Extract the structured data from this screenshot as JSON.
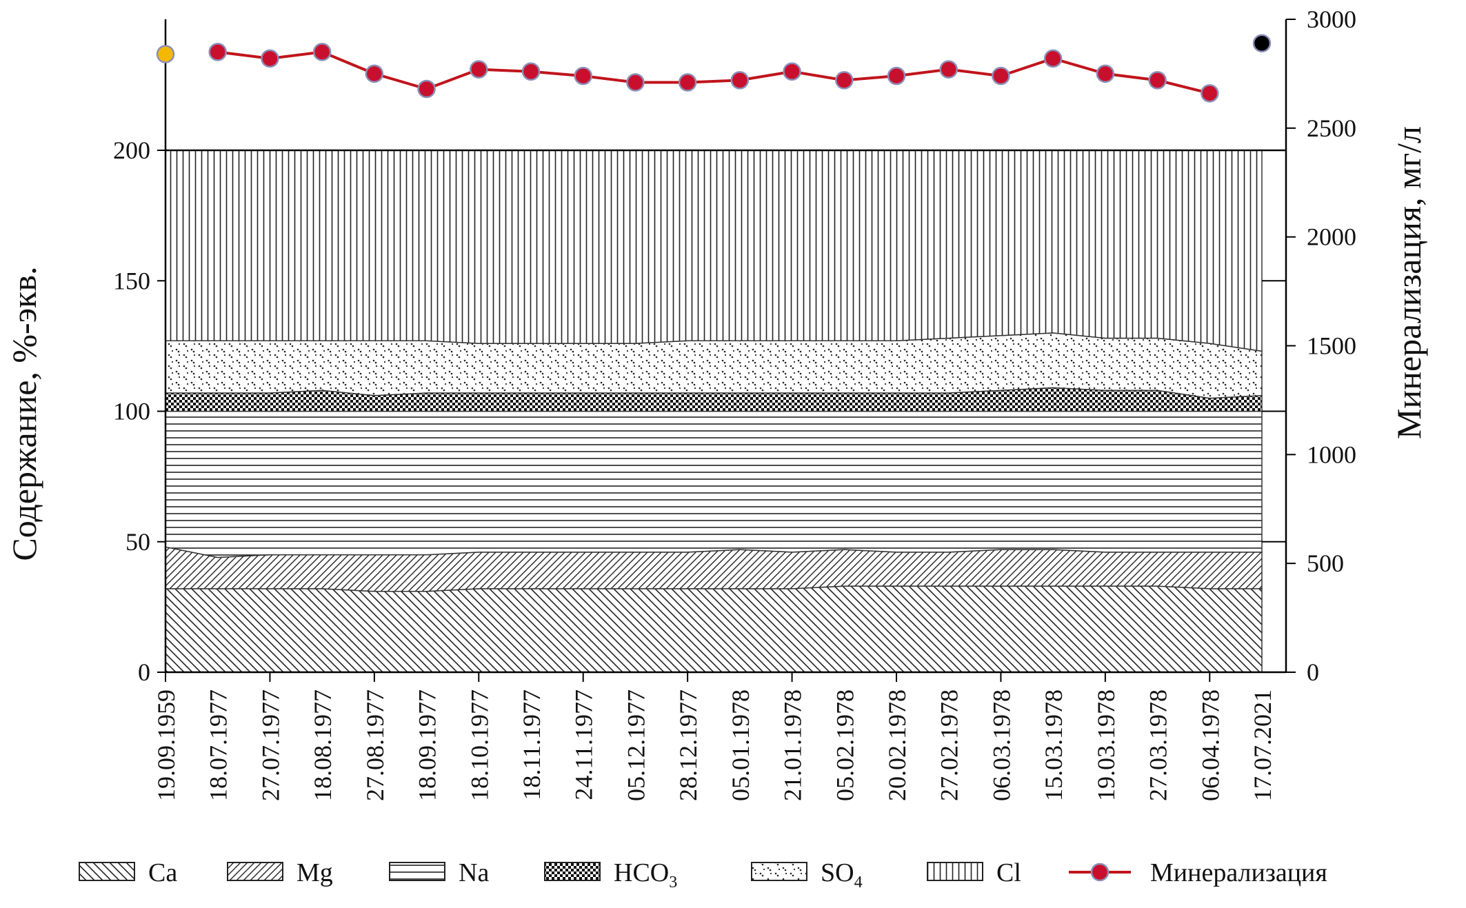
{
  "chart_data": {
    "type": "area",
    "stacked": true,
    "left_axis": {
      "label": "Содержание, %-экв.",
      "ylim": [
        0,
        200
      ],
      "ticks": [
        0,
        50,
        100,
        150,
        200
      ]
    },
    "right_axis": {
      "label": "Минерализация, мг/л",
      "ylim": [
        0,
        3000
      ],
      "ticks": [
        0,
        500,
        1000,
        1500,
        2000,
        2500,
        3000
      ]
    },
    "categories": [
      "19.09.1959",
      "18.07.1977",
      "27.07.1977",
      "18.08.1977",
      "27.08.1977",
      "18.09.1977",
      "18.10.1977",
      "18.11.1977",
      "24.11.1977",
      "05.12.1977",
      "28.12.1977",
      "05.01.1978",
      "21.01.1978",
      "05.02.1978",
      "20.02.1978",
      "27.02.1978",
      "06.03.1978",
      "15.03.1978",
      "19.03.1978",
      "27.03.1978",
      "06.04.1978",
      "17.07.2021"
    ],
    "series": [
      {
        "name": "Ca",
        "pattern": "back-diagonal",
        "values": [
          32,
          32,
          32,
          32,
          31,
          31,
          32,
          32,
          32,
          32,
          32,
          32,
          32,
          33,
          33,
          33,
          33,
          33,
          33,
          33,
          32,
          32
        ]
      },
      {
        "name": "Mg",
        "pattern": "forward-diagonal",
        "values": [
          16,
          12,
          13,
          13,
          14,
          14,
          14,
          14,
          14,
          14,
          14,
          15,
          14,
          14,
          13,
          13,
          14,
          14,
          13,
          13,
          14,
          14
        ]
      },
      {
        "name": "Na",
        "pattern": "horizontal",
        "values": [
          52,
          56,
          55,
          55,
          55,
          55,
          54,
          54,
          54,
          54,
          54,
          53,
          54,
          53,
          54,
          54,
          53,
          53,
          54,
          54,
          54,
          54
        ]
      },
      {
        "name": "HCO",
        "sub": "3",
        "pattern": "checker",
        "values": [
          7,
          7,
          7,
          8,
          6,
          7,
          7,
          7,
          7,
          7,
          7,
          7,
          7,
          7,
          7,
          7,
          8,
          9,
          8,
          8,
          5,
          6
        ]
      },
      {
        "name": "SO",
        "sub": "4",
        "pattern": "dots",
        "values": [
          20,
          20,
          20,
          19,
          21,
          20,
          19,
          19,
          19,
          19,
          20,
          20,
          20,
          20,
          20,
          21,
          21,
          21,
          20,
          20,
          21,
          17
        ]
      },
      {
        "name": "Cl",
        "pattern": "vertical",
        "values": [
          73,
          73,
          73,
          73,
          73,
          73,
          74,
          74,
          74,
          74,
          73,
          73,
          73,
          73,
          73,
          72,
          71,
          70,
          72,
          72,
          74,
          77
        ]
      }
    ],
    "mineralization": {
      "name": "Минерализация",
      "values": [
        2840,
        2850,
        2820,
        2850,
        2750,
        2680,
        2770,
        2760,
        2740,
        2710,
        2710,
        2720,
        2760,
        2720,
        2740,
        2770,
        2740,
        2820,
        2750,
        2720,
        2660,
        2890
      ]
    },
    "legend_position": "bottom",
    "colors": {
      "line": "#c0141c",
      "marker": "#c8102e",
      "marker_edge": "#8a8fb8",
      "first_marker": "#f5b800",
      "last_marker": "#000000",
      "axis": "#000000"
    }
  }
}
